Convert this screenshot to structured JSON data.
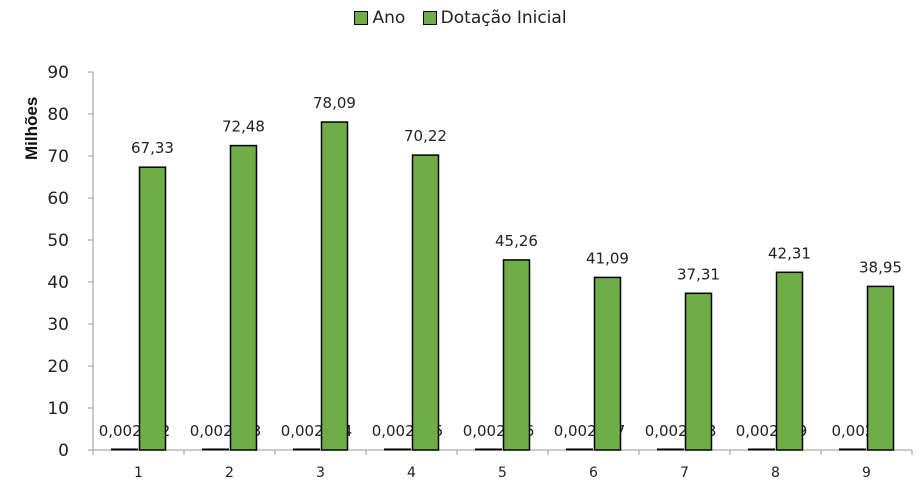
{
  "chart_data": {
    "type": "bar",
    "ylabel": "Milhões",
    "ylim": [
      0,
      90
    ],
    "ytick_step": 10,
    "grid": false,
    "legend_position": "top-center",
    "categories": [
      "1",
      "2",
      "3",
      "4",
      "5",
      "6",
      "7",
      "8",
      "9"
    ],
    "series": [
      {
        "name": "Ano",
        "color": "#70ad47",
        "values": [
          0.002012,
          0.002013,
          0.002014,
          0.002015,
          0.002016,
          0.002017,
          0.002018,
          0.002019,
          0.00202
        ],
        "data_labels": [
          "0,002012",
          "0,002013",
          "0,002014",
          "0,002015",
          "0,002016",
          "0,002017",
          "0,002018",
          "0,002019",
          "0,00202"
        ]
      },
      {
        "name": "Dotação Inicial",
        "color": "#70ad47",
        "values": [
          67.33,
          72.48,
          78.09,
          70.22,
          45.26,
          41.09,
          37.31,
          42.31,
          38.95
        ],
        "data_labels": [
          "67,33",
          "72,48",
          "78,09",
          "70,22",
          "45,26",
          "41,09",
          "37,31",
          "42,31",
          "38,95"
        ]
      }
    ]
  }
}
